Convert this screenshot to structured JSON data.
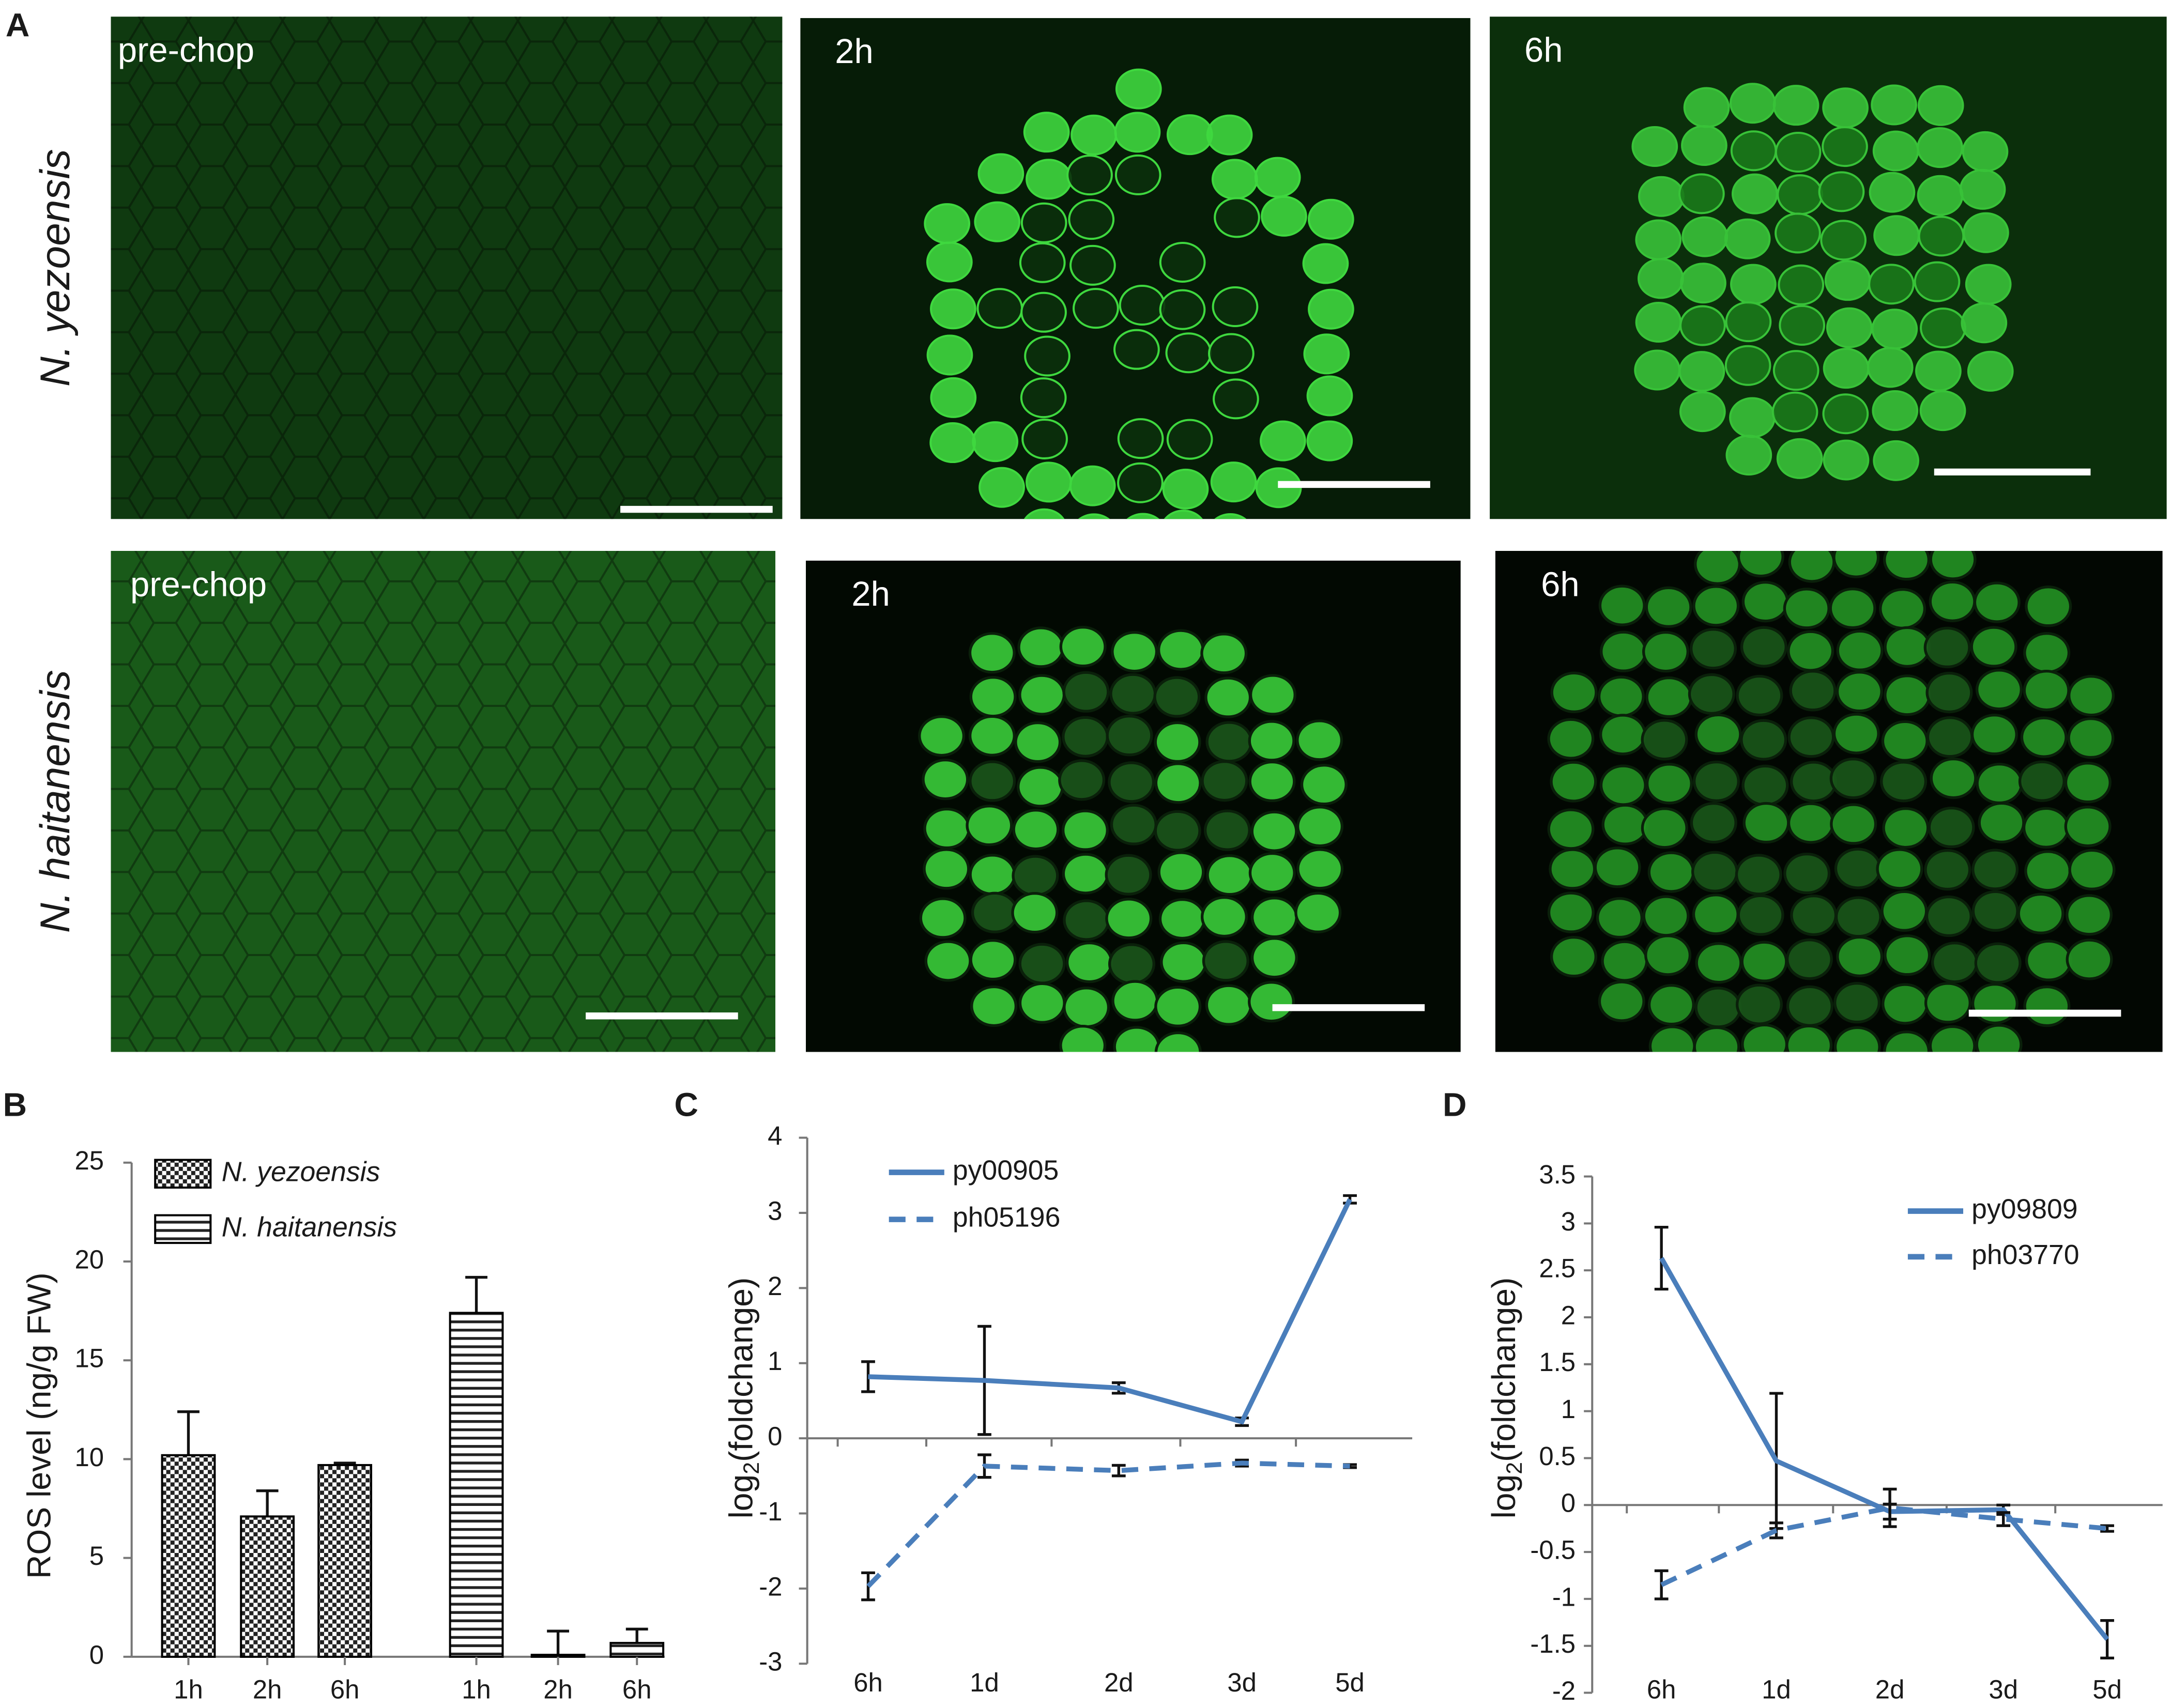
{
  "panel_a": {
    "label": "A",
    "rows": [
      {
        "species": "N. yezoensis",
        "panels": [
          "pre-chop",
          "2h",
          "6h"
        ]
      },
      {
        "species": "N. haitanensis",
        "panels": [
          "pre-chop",
          "2h",
          "6h"
        ]
      }
    ]
  },
  "chart_data": [
    {
      "type": "bar",
      "label": "B",
      "y_label": "ROS level (ng/g FW)",
      "categories": [
        "1h",
        "2h",
        "6h"
      ],
      "series": [
        {
          "name": "N. yezoensis",
          "pattern": "checker",
          "color": "#000000",
          "values": [
            10.2,
            7.1,
            9.7
          ],
          "errors": [
            2.2,
            1.3,
            0.1
          ]
        },
        {
          "name": "N. haitanensis",
          "pattern": "stripes",
          "color": "#000000",
          "values": [
            17.4,
            0.1,
            0.7
          ],
          "errors": [
            1.8,
            1.2,
            0.7
          ]
        }
      ],
      "ylim": [
        0,
        25
      ],
      "yticks": [
        0,
        5,
        10,
        15,
        20,
        25
      ]
    },
    {
      "type": "line",
      "label": "C",
      "y_label": {
        "base": "log",
        "subscript": "2",
        "rest": "(foldchange)"
      },
      "categories": [
        "6h",
        "1d",
        "2d",
        "3d",
        "5d"
      ],
      "series": [
        {
          "name": "py00905",
          "color": "#4a7ebb",
          "dashed": false,
          "values": [
            0.82,
            0.77,
            0.67,
            0.22,
            3.18
          ],
          "errors": [
            0.2,
            0.72,
            0.07,
            0.05,
            0.05
          ]
        },
        {
          "name": "ph05196",
          "color": "#4a7ebb",
          "dashed": true,
          "values": [
            -1.97,
            -0.37,
            -0.43,
            -0.33,
            -0.37
          ],
          "errors": [
            0.18,
            0.15,
            0.07,
            0.04,
            0.02
          ]
        }
      ],
      "ylim": [
        -3,
        4
      ],
      "yticks": [
        -3,
        -2,
        -1,
        0,
        1,
        2,
        3,
        4
      ]
    },
    {
      "type": "line",
      "label": "D",
      "y_label": {
        "base": "log",
        "subscript": "2",
        "rest": "(foldchange)"
      },
      "categories": [
        "6h",
        "1d",
        "2d",
        "3d",
        "5d"
      ],
      "series": [
        {
          "name": "py09809",
          "color": "#4a7ebb",
          "dashed": false,
          "values": [
            2.63,
            0.47,
            -0.07,
            -0.05,
            -1.43
          ],
          "errors": [
            0.33,
            0.72,
            0.08,
            0.05,
            0.2
          ]
        },
        {
          "name": "ph03770",
          "color": "#4a7ebb",
          "dashed": true,
          "values": [
            -0.85,
            -0.27,
            -0.03,
            -0.15,
            -0.25
          ],
          "errors": [
            0.15,
            0.08,
            0.2,
            0.07,
            0.03
          ]
        }
      ],
      "ylim": [
        -2,
        3.5
      ],
      "yticks": [
        -2,
        -1.5,
        -1,
        -0.5,
        0,
        0.5,
        1,
        1.5,
        2,
        2.5,
        3,
        3.5
      ]
    }
  ]
}
